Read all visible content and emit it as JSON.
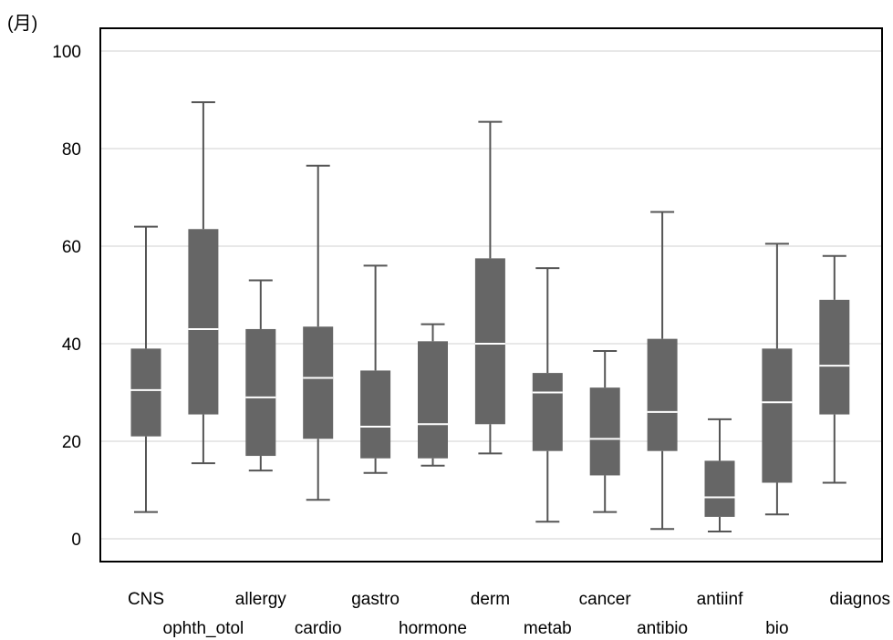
{
  "chart_data": {
    "type": "boxplot",
    "ylabel": "(月)",
    "ylim": [
      0,
      100
    ],
    "yticks": [
      0,
      20,
      40,
      60,
      80,
      100
    ],
    "grid": true,
    "categories": [
      "CNS",
      "ophth_otol",
      "allergy",
      "cardio",
      "gastro",
      "hormone",
      "derm",
      "metab",
      "cancer",
      "antibio",
      "antiinf",
      "bio",
      "diagnos"
    ],
    "boxes": [
      {
        "min": 5.5,
        "q1": 21.0,
        "median": 30.5,
        "q3": 39.0,
        "max": 64.0
      },
      {
        "min": 15.5,
        "q1": 25.5,
        "median": 43.0,
        "q3": 63.5,
        "max": 89.5
      },
      {
        "min": 14.0,
        "q1": 17.0,
        "median": 29.0,
        "q3": 43.0,
        "max": 53.0
      },
      {
        "min": 8.0,
        "q1": 20.5,
        "median": 33.0,
        "q3": 43.5,
        "max": 76.5
      },
      {
        "min": 13.5,
        "q1": 16.5,
        "median": 23.0,
        "q3": 34.5,
        "max": 56.0
      },
      {
        "min": 15.0,
        "q1": 16.5,
        "median": 23.5,
        "q3": 40.5,
        "max": 44.0
      },
      {
        "min": 17.5,
        "q1": 23.5,
        "median": 40.0,
        "q3": 57.5,
        "max": 85.5
      },
      {
        "min": 3.5,
        "q1": 18.0,
        "median": 30.0,
        "q3": 34.0,
        "max": 55.5
      },
      {
        "min": 5.5,
        "q1": 13.0,
        "median": 20.5,
        "q3": 31.0,
        "max": 38.5
      },
      {
        "min": 2.0,
        "q1": 18.0,
        "median": 26.0,
        "q3": 41.0,
        "max": 67.0
      },
      {
        "min": 1.5,
        "q1": 4.5,
        "median": 8.5,
        "q3": 16.0,
        "max": 24.5
      },
      {
        "min": 5.0,
        "q1": 11.5,
        "median": 28.0,
        "q3": 39.0,
        "max": 60.5
      },
      {
        "min": 11.5,
        "q1": 25.5,
        "median": 35.5,
        "q3": 49.0,
        "max": 58.0
      }
    ],
    "colors": {
      "box_fill": "#666666",
      "median_line": "#ffffff",
      "whisker": "#555555",
      "grid": "#d9d9d9",
      "frame": "#000000"
    }
  }
}
